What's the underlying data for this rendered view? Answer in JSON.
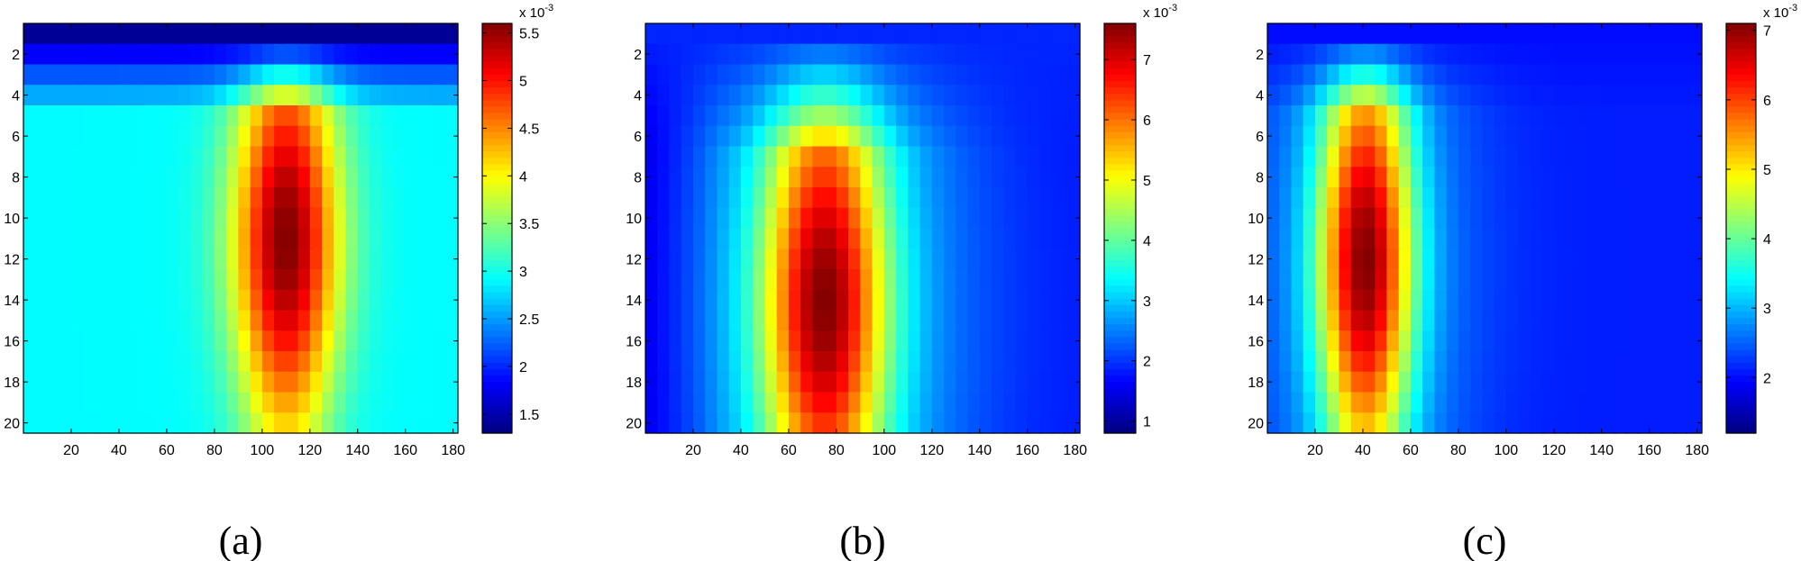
{
  "figure": {
    "colormap": "jet",
    "colorbar_exponent": "x 10",
    "colorbar_exponent_power": "-3"
  },
  "chart_data": [
    {
      "type": "heatmap",
      "caption": "(a)",
      "xlim": [
        0,
        182
      ],
      "ylim": [
        20.5,
        0.5
      ],
      "x_ticks": [
        20,
        40,
        60,
        80,
        100,
        120,
        140,
        160,
        180
      ],
      "y_ticks": [
        2,
        4,
        6,
        8,
        10,
        12,
        14,
        16,
        18,
        20
      ],
      "grid": {
        "rows": 20,
        "cols": 36,
        "col_width": 5
      },
      "colorbar": {
        "min": 1.3,
        "max": 5.6,
        "ticks": [
          1.5,
          2,
          2.5,
          3,
          3.5,
          4,
          4.5,
          5,
          5.5
        ],
        "exponent": "x 10^-3"
      },
      "model": {
        "peak_x": 111,
        "peak_row": 11,
        "peak_value": 5.6,
        "sigma_x": 19,
        "base": 2.95,
        "background_value": 2.9,
        "top_row_value": 1.4,
        "ramp_rows": 4,
        "left_shade": 0.0
      }
    },
    {
      "type": "heatmap",
      "caption": "(b)",
      "xlim": [
        0,
        182
      ],
      "ylim": [
        20.5,
        0.5
      ],
      "x_ticks": [
        20,
        40,
        60,
        80,
        100,
        120,
        140,
        160,
        180
      ],
      "y_ticks": [
        2,
        4,
        6,
        8,
        10,
        12,
        14,
        16,
        18,
        20
      ],
      "grid": {
        "rows": 20,
        "cols": 36,
        "col_width": 5
      },
      "colorbar": {
        "min": 0.8,
        "max": 7.6,
        "ticks": [
          1,
          2,
          3,
          4,
          5,
          6,
          7
        ],
        "exponent": "x 10^-3"
      },
      "model": {
        "peak_x": 76,
        "peak_row": 14,
        "peak_value": 7.6,
        "sigma_x": 22,
        "base": 3.2,
        "background_value": 1.8,
        "top_row_value": 1.9,
        "ramp_rows": 6,
        "left_shade": 0.6
      }
    },
    {
      "type": "heatmap",
      "caption": "(c)",
      "xlim": [
        0,
        182
      ],
      "ylim": [
        20.5,
        0.5
      ],
      "x_ticks": [
        20,
        40,
        60,
        80,
        100,
        120,
        140,
        160,
        180
      ],
      "y_ticks": [
        2,
        4,
        6,
        8,
        10,
        12,
        14,
        16,
        18,
        20
      ],
      "grid": {
        "rows": 20,
        "cols": 36,
        "col_width": 5
      },
      "colorbar": {
        "min": 1.2,
        "max": 7.1,
        "ticks": [
          2,
          3,
          4,
          5,
          6,
          7
        ],
        "exponent": "x 10^-3"
      },
      "model": {
        "peak_x": 42,
        "peak_row": 12,
        "peak_value": 7.1,
        "sigma_x": 17,
        "base": 2.9,
        "background_value": 2.1,
        "top_row_value": 2.0,
        "ramp_rows": 4,
        "left_shade": 0.0
      }
    }
  ]
}
